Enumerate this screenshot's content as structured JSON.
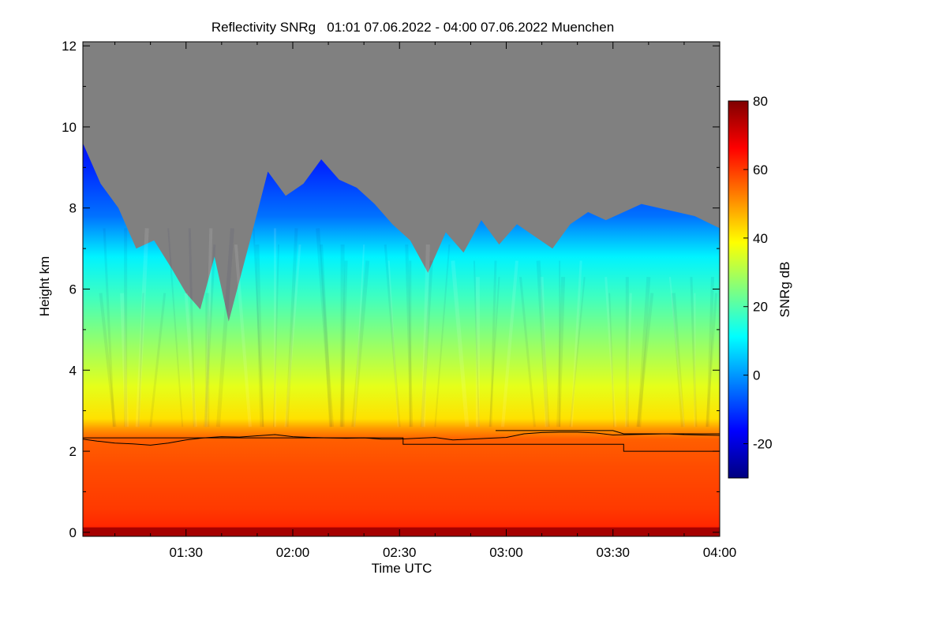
{
  "chart_data": {
    "type": "heatmap",
    "title": "Reflectivity SNRg   01:01 07.06.2022 - 04:00 07.06.2022 Muenchen",
    "xlabel": "Time UTC",
    "ylabel": "Height km",
    "x_range_minutes": [
      61,
      240
    ],
    "x_ticks": [
      {
        "minutes": 90,
        "label": "01:30"
      },
      {
        "minutes": 120,
        "label": "02:00"
      },
      {
        "minutes": 150,
        "label": "02:30"
      },
      {
        "minutes": 180,
        "label": "03:00"
      },
      {
        "minutes": 210,
        "label": "03:30"
      },
      {
        "minutes": 240,
        "label": "04:00"
      }
    ],
    "ylim": [
      -0.1,
      12.1
    ],
    "y_ticks": [
      0,
      2,
      4,
      6,
      8,
      10,
      12
    ],
    "colorbar": {
      "label": "SNRg dB",
      "range": [
        -30,
        80
      ],
      "ticks": [
        -20,
        0,
        20,
        40,
        60,
        80
      ],
      "colormap": "jet",
      "no_signal_color": "#808080"
    },
    "echo_top_km": [
      {
        "t": 61,
        "h": 9.6
      },
      {
        "t": 66,
        "h": 8.6
      },
      {
        "t": 71,
        "h": 8.0
      },
      {
        "t": 76,
        "h": 7.0
      },
      {
        "t": 81,
        "h": 7.2
      },
      {
        "t": 86,
        "h": 6.5
      },
      {
        "t": 90,
        "h": 5.9
      },
      {
        "t": 94,
        "h": 5.5
      },
      {
        "t": 98,
        "h": 6.8
      },
      {
        "t": 102,
        "h": 5.2
      },
      {
        "t": 108,
        "h": 7.2
      },
      {
        "t": 113,
        "h": 8.9
      },
      {
        "t": 118,
        "h": 8.3
      },
      {
        "t": 123,
        "h": 8.6
      },
      {
        "t": 128,
        "h": 9.2
      },
      {
        "t": 133,
        "h": 8.7
      },
      {
        "t": 138,
        "h": 8.5
      },
      {
        "t": 143,
        "h": 8.1
      },
      {
        "t": 148,
        "h": 7.6
      },
      {
        "t": 153,
        "h": 7.2
      },
      {
        "t": 158,
        "h": 6.4
      },
      {
        "t": 163,
        "h": 7.4
      },
      {
        "t": 168,
        "h": 6.9
      },
      {
        "t": 173,
        "h": 7.7
      },
      {
        "t": 178,
        "h": 7.1
      },
      {
        "t": 183,
        "h": 7.6
      },
      {
        "t": 188,
        "h": 7.3
      },
      {
        "t": 193,
        "h": 7.0
      },
      {
        "t": 198,
        "h": 7.6
      },
      {
        "t": 203,
        "h": 7.9
      },
      {
        "t": 208,
        "h": 7.7
      },
      {
        "t": 213,
        "h": 7.9
      },
      {
        "t": 218,
        "h": 8.1
      },
      {
        "t": 223,
        "h": 8.0
      },
      {
        "t": 228,
        "h": 7.9
      },
      {
        "t": 233,
        "h": 7.8
      },
      {
        "t": 240,
        "h": 7.5
      }
    ],
    "series": [
      {
        "points": [
          {
            "t": 61,
            "h": 2.3
          },
          {
            "t": 65,
            "h": 2.25
          },
          {
            "t": 70,
            "h": 2.2
          },
          {
            "t": 75,
            "h": 2.18
          },
          {
            "t": 80,
            "h": 2.15
          },
          {
            "t": 85,
            "h": 2.2
          },
          {
            "t": 90,
            "h": 2.28
          },
          {
            "t": 95,
            "h": 2.33
          },
          {
            "t": 100,
            "h": 2.36
          },
          {
            "t": 105,
            "h": 2.35
          },
          {
            "t": 110,
            "h": 2.38
          },
          {
            "t": 115,
            "h": 2.41
          },
          {
            "t": 120,
            "h": 2.36
          },
          {
            "t": 125,
            "h": 2.34
          },
          {
            "t": 130,
            "h": 2.33
          },
          {
            "t": 135,
            "h": 2.32
          },
          {
            "t": 140,
            "h": 2.33
          },
          {
            "t": 145,
            "h": 2.3
          },
          {
            "t": 150,
            "h": 2.3
          },
          {
            "t": 155,
            "h": 2.32
          },
          {
            "t": 160,
            "h": 2.34
          },
          {
            "t": 165,
            "h": 2.28
          },
          {
            "t": 170,
            "h": 2.3
          },
          {
            "t": 175,
            "h": 2.32
          },
          {
            "t": 180,
            "h": 2.34
          },
          {
            "t": 185,
            "h": 2.43
          },
          {
            "t": 190,
            "h": 2.46
          },
          {
            "t": 195,
            "h": 2.47
          },
          {
            "t": 200,
            "h": 2.47
          },
          {
            "t": 205,
            "h": 2.45
          },
          {
            "t": 210,
            "h": 2.4
          },
          {
            "t": 215,
            "h": 2.41
          },
          {
            "t": 220,
            "h": 2.42
          },
          {
            "t": 225,
            "h": 2.43
          },
          {
            "t": 230,
            "h": 2.41
          },
          {
            "t": 235,
            "h": 2.4
          },
          {
            "t": 240,
            "h": 2.39
          }
        ]
      },
      {
        "points": [
          {
            "t": 61,
            "h": 2.33
          },
          {
            "t": 151,
            "h": 2.33
          },
          {
            "t": 151,
            "h": 2.17
          },
          {
            "t": 213,
            "h": 2.17
          },
          {
            "t": 213,
            "h": 2.0
          },
          {
            "t": 240,
            "h": 2.0
          }
        ]
      },
      {
        "points": [
          {
            "t": 177,
            "h": 2.51
          },
          {
            "t": 210,
            "h": 2.51
          },
          {
            "t": 213,
            "h": 2.43
          },
          {
            "t": 240,
            "h": 2.43
          }
        ]
      }
    ]
  }
}
